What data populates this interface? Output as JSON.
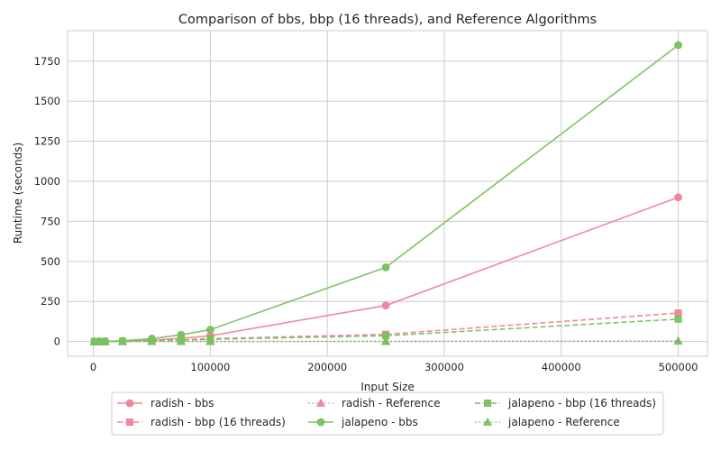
{
  "chart_data": {
    "type": "line",
    "title": "Comparison of bbs, bbp (16 threads), and Reference Algorithms",
    "xlabel": "Input Size",
    "ylabel": "Runtime (seconds)",
    "xlim": [
      -22000,
      525000
    ],
    "ylim": [
      -92,
      1940
    ],
    "xticks": [
      0,
      100000,
      200000,
      300000,
      400000,
      500000
    ],
    "yticks": [
      0,
      250,
      500,
      750,
      1000,
      1250,
      1500,
      1750
    ],
    "grid": true,
    "legend_position": "bottom-center",
    "legend_columns": 3,
    "x": [
      1000,
      5000,
      10000,
      25000,
      50000,
      75000,
      100000,
      250000,
      500000
    ],
    "series": [
      {
        "name": "radish - bbs",
        "color": "#f08399",
        "dash": "solid",
        "marker": "circle",
        "values": [
          0.01,
          0.1,
          0.4,
          2.3,
          9,
          20,
          36,
          225,
          900
        ]
      },
      {
        "name": "radish - bbp (16 threads)",
        "color": "#f08399",
        "dash": "dashed",
        "marker": "square",
        "values": [
          0.01,
          0.05,
          0.2,
          1.1,
          4.5,
          10,
          18,
          45,
          178
        ]
      },
      {
        "name": "radish - Reference",
        "color": "#f08399",
        "dash": "dotted",
        "marker": "triangle",
        "values": [
          0.001,
          0.005,
          0.01,
          0.05,
          0.1,
          0.2,
          0.3,
          1.2,
          3
        ]
      },
      {
        "name": "jalapeno - bbs",
        "color": "#78c15f",
        "dash": "solid",
        "marker": "circle",
        "values": [
          0.02,
          0.2,
          0.7,
          4.6,
          18.5,
          42,
          74,
          463,
          1850
        ]
      },
      {
        "name": "jalapeno - bbp (16 threads)",
        "color": "#78c15f",
        "dash": "dashed",
        "marker": "square",
        "values": [
          0.01,
          0.05,
          0.15,
          0.9,
          3.6,
          8,
          14,
          36,
          140
        ]
      },
      {
        "name": "jalapeno - Reference",
        "color": "#78c15f",
        "dash": "dotted",
        "marker": "triangle",
        "values": [
          0.001,
          0.005,
          0.01,
          0.05,
          0.1,
          0.2,
          0.3,
          1.2,
          3
        ]
      }
    ]
  }
}
